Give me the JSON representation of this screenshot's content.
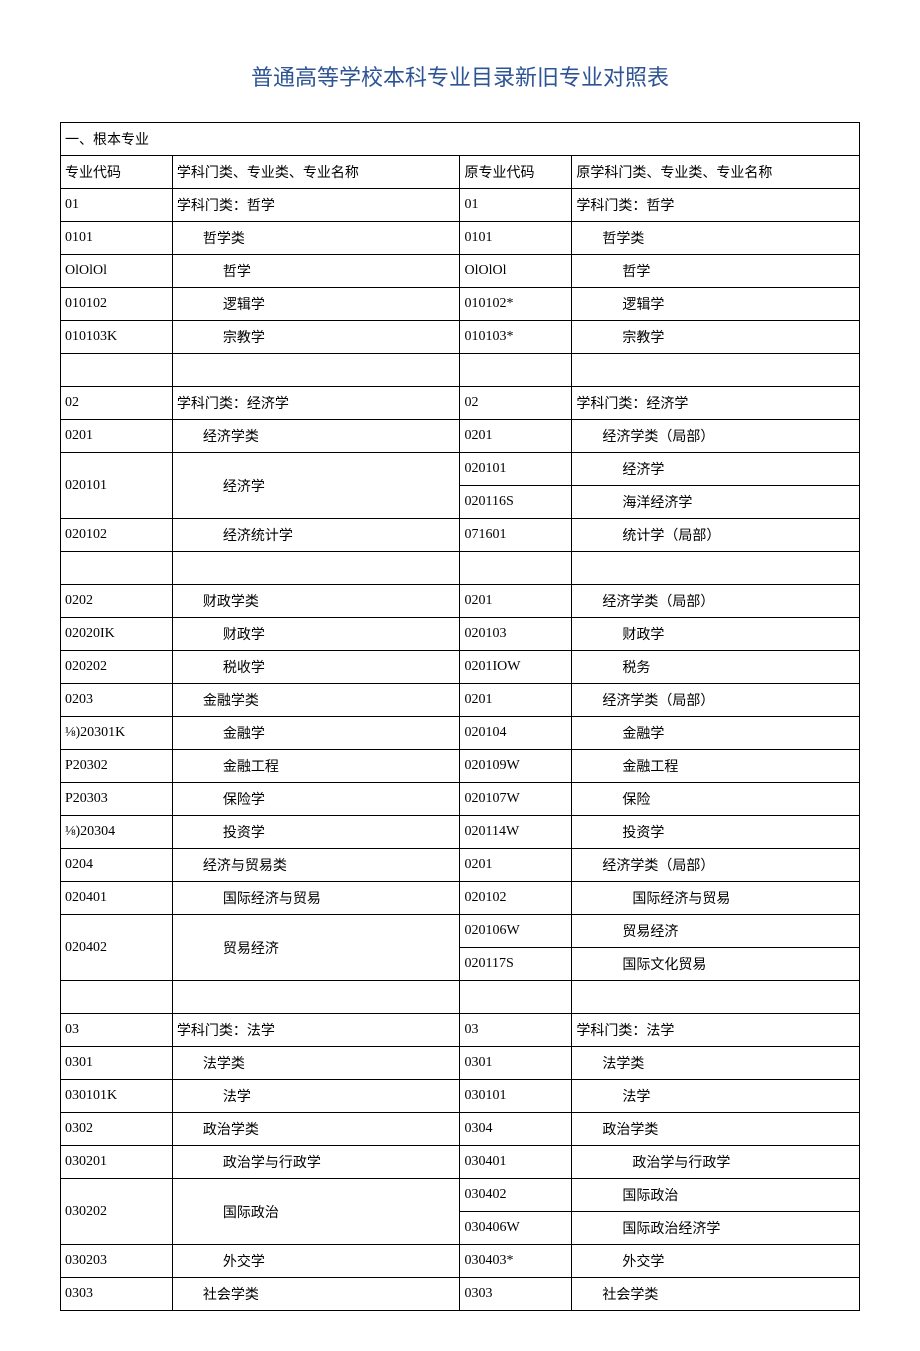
{
  "title": "普通高等学校本科专业目录新旧专业对照表",
  "title_color": "#2e5496",
  "section_header": "一、根本专业",
  "columns": {
    "c1": "专业代码",
    "c2": "学科门类、专业类、专业名称",
    "c3": "原专业代码",
    "c4": "原学科门类、专业类、专业名称"
  },
  "rows": [
    {
      "c1": "01",
      "c2": "学科门类：哲学",
      "c3": "01",
      "c4": "学科门类：哲学",
      "i2": 0,
      "i4": 0
    },
    {
      "c1": "0101",
      "c2": "哲学类",
      "c3": "0101",
      "c4": "哲学类",
      "i2": 1,
      "i4": 1
    },
    {
      "c1": "OlOlOl",
      "c2": "哲学",
      "c3": "OlOlOl",
      "c4": "哲学",
      "i2": 2,
      "i4": 2
    },
    {
      "c1": "010102",
      "c2": "逻辑学",
      "c3": "010102*",
      "c4": "逻辑学",
      "i2": 2,
      "i4": 2
    },
    {
      "c1": "010103K",
      "c2": "宗教学",
      "c3": "010103*",
      "c4": "宗教学",
      "i2": 2,
      "i4": 2
    },
    {
      "blank": true
    },
    {
      "c1": "02",
      "c2": "学科门类：经济学",
      "c3": "02",
      "c4": "学科门类：经济学",
      "i2": 0,
      "i4": 0
    },
    {
      "c1": "0201",
      "c2": "经济学类",
      "c3": "0201",
      "c4": "经济学类（局部）",
      "i2": 1,
      "i4": 1
    },
    {
      "c1": "020101",
      "c2": "经济学",
      "c3": "020101",
      "c4": "经济学",
      "i2": 2,
      "i4": 2,
      "rs": 2
    },
    {
      "c3": "020116S",
      "c4": "海洋经济学",
      "i4": 2
    },
    {
      "c1": "020102",
      "c2": "经济统计学",
      "c3": "071601",
      "c4": "统计学（局部）",
      "i2": 2,
      "i4": 2
    },
    {
      "blank": true
    },
    {
      "c1": "0202",
      "c2": "财政学类",
      "c3": "0201",
      "c4": "经济学类（局部）",
      "i2": 1,
      "i4": 1
    },
    {
      "c1": "02020IK",
      "c2": "财政学",
      "c3": "020103",
      "c4": "财政学",
      "i2": 2,
      "i4": 2
    },
    {
      "c1": "020202",
      "c2": "税收学",
      "c3": "0201IOW",
      "c4": "税务",
      "i2": 2,
      "i4": 2
    },
    {
      "c1": "0203",
      "c2": "金融学类",
      "c3": "0201",
      "c4": "经济学类（局部）",
      "i2": 1,
      "i4": 1
    },
    {
      "c1": "⅛)20301K",
      "c2": "金融学",
      "c3": "020104",
      "c4": "金融学",
      "i2": 2,
      "i4": 2
    },
    {
      "c1": "P20302",
      "c2": "金融工程",
      "c3": "020109W",
      "c4": "金融工程",
      "i2": 2,
      "i4": 2
    },
    {
      "c1": "P20303",
      "c2": "保险学",
      "c3": "020107W",
      "c4": "保险",
      "i2": 2,
      "i4": 2
    },
    {
      "c1": "⅛)20304",
      "c2": "投资学",
      "c3": "020114W",
      "c4": "投资学",
      "i2": 2,
      "i4": 2
    },
    {
      "c1": "0204",
      "c2": "经济与贸易类",
      "c3": "0201",
      "c4": "经济学类（局部）",
      "i2": 1,
      "i4": 1
    },
    {
      "c1": "020401",
      "c2": "国际经济与贸易",
      "c3": "020102",
      "c4": "国际经济与贸易",
      "i2": 2,
      "i4": 3
    },
    {
      "c1": "020402",
      "c2": "贸易经济",
      "c3": "020106W",
      "c4": "贸易经济",
      "i2": 2,
      "i4": 2,
      "rs": 2
    },
    {
      "c3": "020117S",
      "c4": "国际文化贸易",
      "i4": 2
    },
    {
      "blank": true
    },
    {
      "c1": "03",
      "c2": "学科门类：法学",
      "c3": "03",
      "c4": "学科门类：法学",
      "i2": 0,
      "i4": 0
    },
    {
      "c1": "0301",
      "c2": "法学类",
      "c3": "0301",
      "c4": "法学类",
      "i2": 1,
      "i4": 1
    },
    {
      "c1": "030101K",
      "c2": "法学",
      "c3": "030101",
      "c4": "法学",
      "i2": 2,
      "i4": 2
    },
    {
      "c1": "0302",
      "c2": "政治学类",
      "c3": "0304",
      "c4": "政治学类",
      "i2": 1,
      "i4": 1
    },
    {
      "c1": "030201",
      "c2": "政治学与行政学",
      "c3": "030401",
      "c4": "政治学与行政学",
      "i2": 2,
      "i4": 3
    },
    {
      "c1": "030202",
      "c2": "国际政治",
      "c3": "030402",
      "c4": "国际政治",
      "i2": 2,
      "i4": 2,
      "rs": 2
    },
    {
      "c3": "030406W",
      "c4": "国际政治经济学",
      "i4": 2
    },
    {
      "c1": "030203",
      "c2": "外交学",
      "c3": "030403*",
      "c4": "外交学",
      "i2": 2,
      "i4": 2
    },
    {
      "c1": "0303",
      "c2": "社会学类",
      "c3": "0303",
      "c4": "社会学类",
      "i2": 1,
      "i4": 1
    }
  ]
}
